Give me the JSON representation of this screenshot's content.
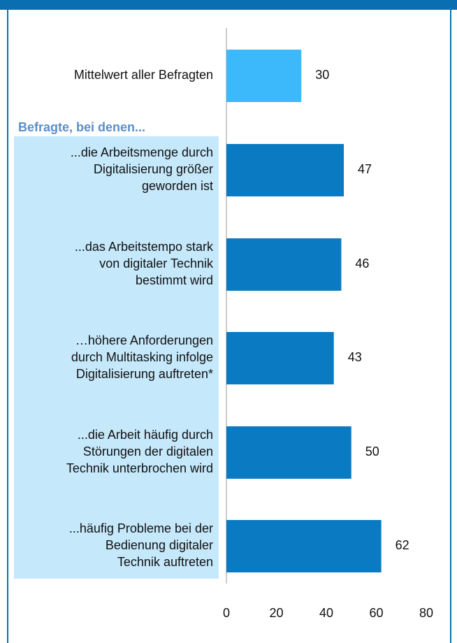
{
  "chart_data": {
    "type": "bar",
    "orientation": "horizontal",
    "categories": [
      [
        "Mittelwert aller Befragten"
      ],
      [
        "...die Arbeitsmenge durch",
        "Digitalisierung größer",
        "geworden ist"
      ],
      [
        "...das Arbeitstempo stark",
        "von digitaler Technik",
        "bestimmt wird"
      ],
      [
        "…höhere Anforderungen",
        "durch Multitasking infolge",
        "Digitalisierung auftreten*"
      ],
      [
        "...die Arbeit häufig durch",
        "Störungen der digitalen",
        "Technik unterbrochen wird"
      ],
      [
        "...häufig Probleme bei der",
        "Bedienung digitaler",
        "Technik auftreten"
      ]
    ],
    "values": [
      30,
      47,
      46,
      43,
      50,
      62
    ],
    "colors": [
      "#3bb9fb",
      "#0a7bc2",
      "#0a7bc2",
      "#0a7bc2",
      "#0a7bc2",
      "#0a7bc2"
    ],
    "group_label": "Befragte, bei denen...",
    "xlim": [
      0,
      80
    ],
    "xticks": [
      0,
      20,
      40,
      60,
      80
    ]
  }
}
